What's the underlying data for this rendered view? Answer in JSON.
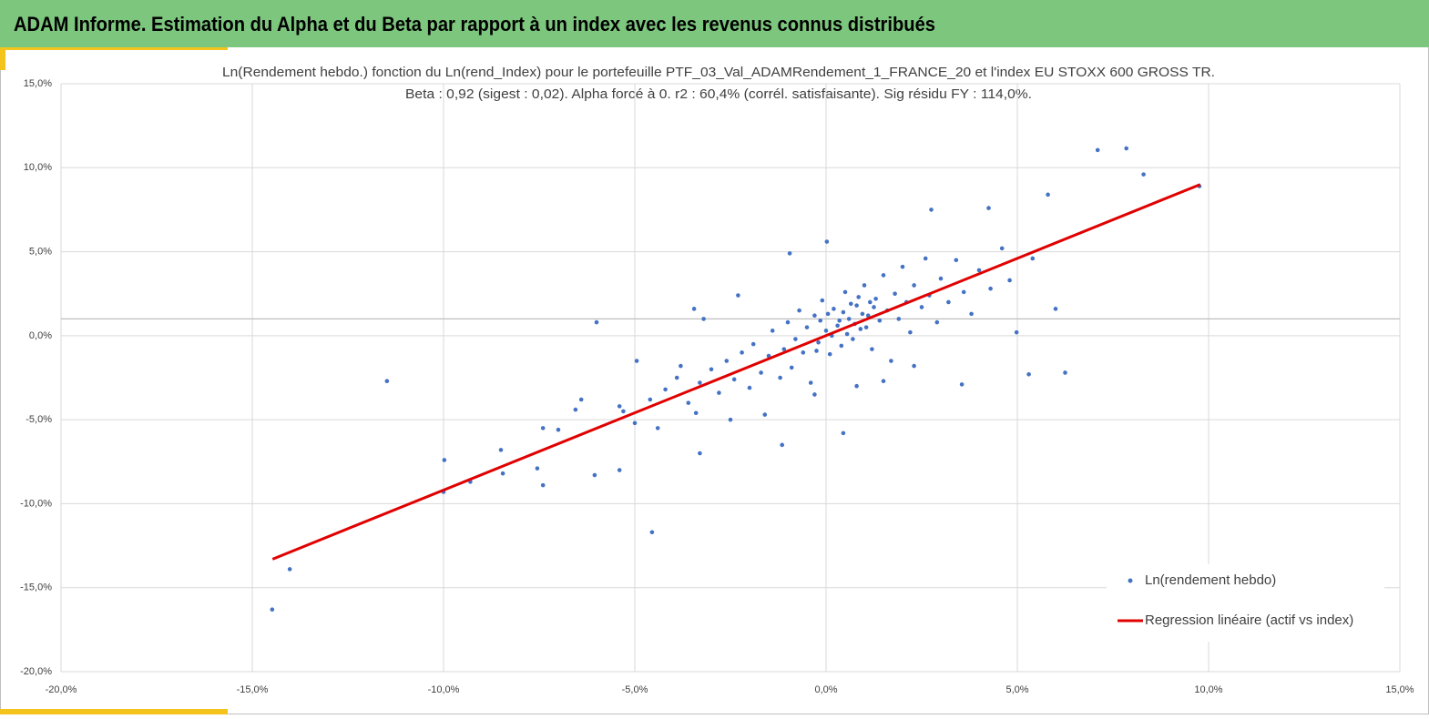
{
  "header": {
    "title": "ADAM Informe. Estimation du Alpha et du Beta par rapport à un index avec les revenus connus distribués"
  },
  "chart_data": {
    "type": "scatter",
    "title": "Ln(Rendement hebdo.) fonction du Ln(rend_Index) pour le portefeuille PTF_03_Val_ADAMRendement_1_FRANCE_20 et l'index EU STOXX 600 GROSS TR.",
    "subtitle": "Beta : 0,92 (sigest : 0,02). Alpha forcé à 0. r2 : 60,4% (corrél. satisfaisante). Sig résidu FY : 114,0%.",
    "xlim": [
      -20,
      15
    ],
    "ylim": [
      -20,
      15
    ],
    "xticks": [
      {
        "value": -20,
        "label": "-20,0%"
      },
      {
        "value": -15,
        "label": "-15,0%"
      },
      {
        "value": -10,
        "label": "-10,0%"
      },
      {
        "value": -5,
        "label": "-5,0%"
      },
      {
        "value": 0,
        "label": "0,0%"
      },
      {
        "value": 5,
        "label": "5,0%"
      },
      {
        "value": 10,
        "label": "10,0%"
      },
      {
        "value": 15,
        "label": "15,0%"
      }
    ],
    "yticks": [
      {
        "value": -20,
        "label": "-20,0%"
      },
      {
        "value": -15,
        "label": "-15,0%"
      },
      {
        "value": -10,
        "label": "-10,0%"
      },
      {
        "value": -5,
        "label": "-5,0%"
      },
      {
        "value": 0,
        "label": "0,0%"
      },
      {
        "value": 5,
        "label": "5,0%"
      },
      {
        "value": 10,
        "label": "10,0%"
      },
      {
        "value": 15,
        "label": "15,0%"
      }
    ],
    "grid": true,
    "x_axis_at": 1,
    "legend": "lower right",
    "series": [
      {
        "name": "Ln(rendement hebdo)",
        "color": "#4472c4",
        "type": "scatter",
        "x": [
          -14.48,
          -14.02,
          -11.48,
          -9.98,
          -10.0,
          -9.3,
          -8.5,
          -8.45,
          -7.55,
          -7.4,
          -7.4,
          -7.0,
          -6.0,
          -6.05,
          -6.55,
          -6.4,
          -4.55,
          -4.95,
          -5.4,
          -5.4,
          -0.95,
          0.02,
          7.1,
          7.85,
          8.3,
          9.76,
          5.8,
          4.98,
          5.3,
          6.25,
          3.55,
          0.45,
          5.4,
          6.0,
          4.25,
          2.75,
          -3.4,
          -3.3,
          -1.15,
          -3.45,
          -3.2,
          -2.3,
          -4.2,
          -3.9,
          -3.6,
          -3.3,
          -3.0,
          -2.8,
          -2.6,
          -2.4,
          -2.2,
          -2.0,
          -1.9,
          -1.7,
          -1.5,
          -1.4,
          -1.2,
          -1.1,
          -1.0,
          -0.9,
          -0.8,
          -0.7,
          -0.6,
          -0.5,
          -0.4,
          -0.3,
          -0.2,
          -0.1,
          0.0,
          0.1,
          0.2,
          0.3,
          0.4,
          0.5,
          0.6,
          0.7,
          0.8,
          0.9,
          1.0,
          1.1,
          1.2,
          1.3,
          1.4,
          1.5,
          1.6,
          1.7,
          1.8,
          1.9,
          2.0,
          2.1,
          2.2,
          2.3,
          2.5,
          2.6,
          2.7,
          2.9,
          3.0,
          3.2,
          3.4,
          3.6,
          3.8,
          4.0,
          4.3,
          4.6,
          4.8,
          -2.5,
          -1.6,
          -0.3,
          0.8,
          1.5,
          2.3,
          -5.0,
          -4.6,
          -4.4,
          -5.3,
          -3.8,
          0.35,
          0.45,
          0.55,
          0.65,
          0.75,
          0.85,
          0.95,
          1.05,
          1.15,
          1.25,
          -0.15,
          -0.25,
          0.05,
          0.15
        ],
        "values": [
          -16.3,
          -13.9,
          -2.7,
          -7.4,
          -9.3,
          -8.7,
          -6.8,
          -8.2,
          -7.9,
          -8.9,
          -5.5,
          -5.6,
          0.8,
          -8.3,
          -4.4,
          -3.8,
          -11.7,
          -1.5,
          -4.2,
          -8.0,
          4.9,
          5.6,
          11.05,
          11.15,
          9.6,
          8.9,
          8.4,
          0.2,
          -2.3,
          -2.2,
          -2.9,
          -5.8,
          4.6,
          1.6,
          7.6,
          7.5,
          -4.6,
          -7.0,
          -6.5,
          1.6,
          1.0,
          2.4,
          -3.2,
          -2.5,
          -4.0,
          -2.8,
          -2.0,
          -3.4,
          -1.5,
          -2.6,
          -1.0,
          -3.1,
          -0.5,
          -2.2,
          -1.2,
          0.3,
          -2.5,
          -0.8,
          0.8,
          -1.9,
          -0.2,
          1.5,
          -1.0,
          0.5,
          -2.8,
          1.2,
          -0.4,
          2.1,
          0.3,
          -1.1,
          1.6,
          0.6,
          -0.6,
          2.6,
          1.0,
          -0.2,
          1.8,
          0.4,
          3.0,
          1.2,
          -0.8,
          2.2,
          0.9,
          3.6,
          1.5,
          -1.5,
          2.5,
          1.0,
          4.1,
          2.0,
          0.2,
          3.0,
          1.7,
          4.6,
          2.4,
          0.8,
          3.4,
          2.0,
          4.5,
          2.6,
          1.3,
          3.9,
          2.8,
          5.2,
          3.3,
          -5.0,
          -4.7,
          -3.5,
          -3.0,
          -2.7,
          -1.8,
          -5.2,
          -3.8,
          -5.5,
          -4.5,
          -1.8,
          0.9,
          1.4,
          0.1,
          1.9,
          0.7,
          2.3,
          1.3,
          0.5,
          2.0,
          1.7,
          0.9,
          -0.9,
          1.3,
          0.0
        ]
      },
      {
        "name": "Regression linéaire (actif vs index)",
        "color": "#e00000",
        "type": "line",
        "x": [
          -14.47,
          9.78
        ],
        "values": [
          -13.3,
          9.0
        ]
      }
    ]
  }
}
